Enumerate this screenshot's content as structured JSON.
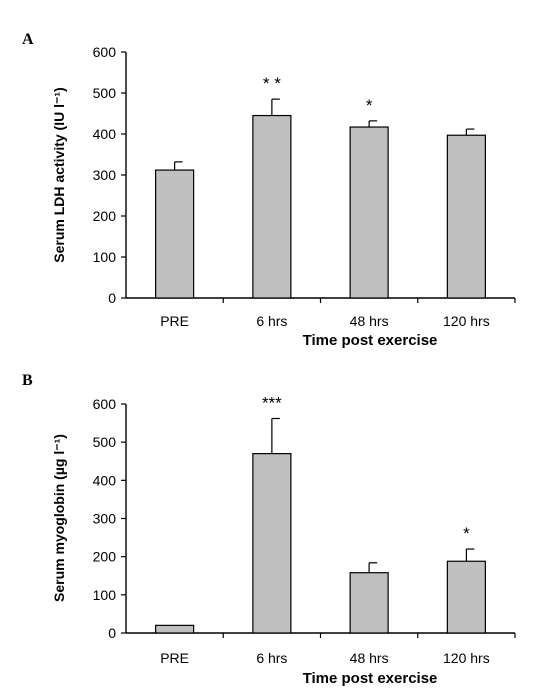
{
  "chart_data": [
    {
      "type": "bar",
      "panel_label": "A",
      "categories": [
        "PRE",
        "6 hrs",
        "48 hrs",
        "120 hrs"
      ],
      "values": [
        312,
        445,
        417,
        397
      ],
      "errors": [
        20,
        40,
        15,
        15
      ],
      "significance": [
        "",
        "* *",
        "*",
        ""
      ],
      "xlabel": "Time post exercise",
      "ylabel": "Serum LDH activity (IU l⁻¹)",
      "ylim": [
        0,
        600
      ],
      "yticks": [
        0,
        100,
        200,
        300,
        400,
        500,
        600
      ],
      "grid": false,
      "bar_color": "#c0c0c0"
    },
    {
      "type": "bar",
      "panel_label": "B",
      "categories": [
        "PRE",
        "6 hrs",
        "48 hrs",
        "120 hrs"
      ],
      "values": [
        20,
        470,
        158,
        188
      ],
      "errors": [
        0,
        92,
        26,
        32
      ],
      "significance": [
        "",
        "***",
        "",
        "*"
      ],
      "xlabel": "Time post exercise",
      "ylabel": "Serum myoglobin (µg l⁻¹)",
      "ylim": [
        0,
        600
      ],
      "yticks": [
        0,
        100,
        200,
        300,
        400,
        500,
        600
      ],
      "grid": false,
      "bar_color": "#c0c0c0"
    }
  ]
}
